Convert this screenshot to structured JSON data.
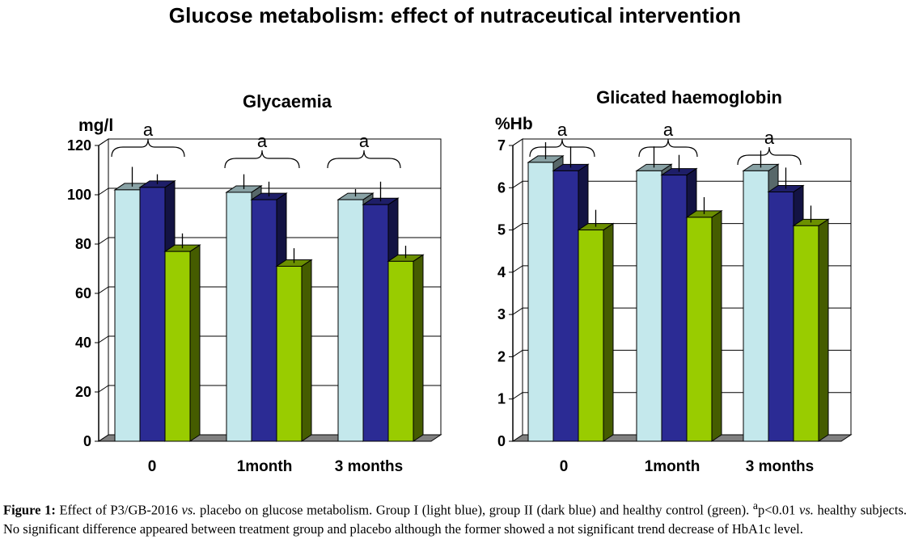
{
  "title": "Glucose metabolism: effect of nutraceutical intervention",
  "colors": {
    "group_i": "#c4e8ec",
    "group_ii": "#2b2b94",
    "control": "#99cc00",
    "grid": "#000000",
    "floor": "#808080"
  },
  "caption": {
    "figure_label": "Figure 1:",
    "part1": " Effect of P3/GB-2016 ",
    "vs1": "vs.",
    "part2": " placebo on glucose metabolism. Group I (light blue), group II (dark blue) and healthy control (green). ",
    "sup": "a",
    "part3": "p<0.01 ",
    "vs2": "vs.",
    "part4": " healthy subjects. No significant difference appeared between treatment group and placebo although the former showed a not significant trend decrease of HbA1c level."
  },
  "chart_data": [
    {
      "type": "bar",
      "title": "Glycaemia",
      "ylabel": "mg/l",
      "xlabel": "",
      "categories": [
        "0",
        "1month",
        "3 months"
      ],
      "ylim": [
        0,
        120
      ],
      "yticks": [
        0,
        20,
        40,
        60,
        80,
        100,
        120
      ],
      "grid": true,
      "series": [
        {
          "name": "Group I",
          "color_key": "group_i",
          "values": [
            102,
            101,
            98
          ],
          "errors": [
            8,
            6,
            3
          ]
        },
        {
          "name": "Group II",
          "color_key": "group_ii",
          "values": [
            103,
            98,
            96
          ],
          "errors": [
            4,
            6,
            8
          ]
        },
        {
          "name": "Healthy control",
          "color_key": "control",
          "values": [
            77,
            71,
            73
          ],
          "errors": [
            6,
            6,
            5
          ]
        }
      ],
      "significance_label": "a",
      "significance_categories": [
        0,
        1,
        2
      ]
    },
    {
      "type": "bar",
      "title": "Glicated haemoglobin",
      "ylabel": "%Hb",
      "xlabel": "",
      "categories": [
        "0",
        "1month",
        "3 months"
      ],
      "ylim": [
        0,
        7
      ],
      "yticks": [
        0,
        1,
        2,
        3,
        4,
        5,
        6,
        7
      ],
      "grid": true,
      "series": [
        {
          "name": "Group I",
          "color_key": "group_i",
          "values": [
            6.6,
            6.4,
            6.4
          ],
          "errors": [
            0.4,
            0.5,
            0.4
          ]
        },
        {
          "name": "Group II",
          "color_key": "group_ii",
          "values": [
            6.4,
            6.3,
            5.9
          ],
          "errors": [
            0.5,
            0.4,
            0.5
          ]
        },
        {
          "name": "Healthy control",
          "color_key": "control",
          "values": [
            5.0,
            5.3,
            5.1
          ],
          "errors": [
            0.4,
            0.4,
            0.4
          ]
        }
      ],
      "significance_label": "a",
      "significance_categories": [
        0,
        1,
        2
      ]
    }
  ]
}
